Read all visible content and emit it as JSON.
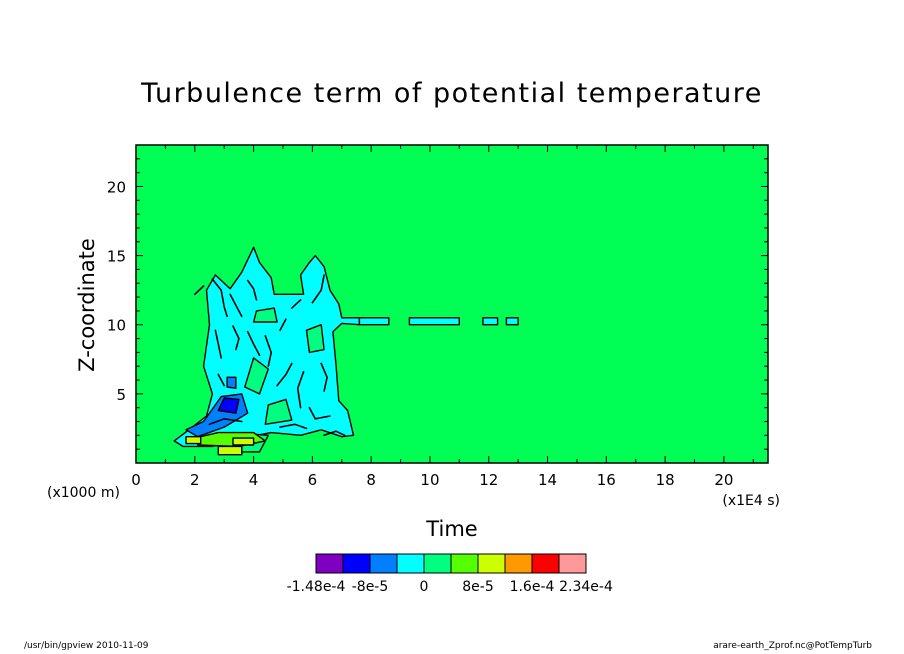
{
  "chart_data": {
    "type": "heatmap",
    "title": "Turbulence term of potential temperature",
    "xlabel": "Time",
    "ylabel": "Z-coordinate",
    "x_unit_note": "(x1E4 s)",
    "y_unit_note": "(x1000 m)",
    "xlim": [
      0,
      21.5
    ],
    "ylim": [
      0,
      23
    ],
    "x_ticks": [
      0,
      2,
      4,
      6,
      8,
      10,
      12,
      14,
      16,
      18,
      20
    ],
    "y_ticks": [
      5,
      10,
      15,
      20
    ],
    "background_level_color": "#00ff55",
    "colorbar": {
      "colors": [
        "#8000c0",
        "#0000ff",
        "#0080ff",
        "#00ffff",
        "#00ff80",
        "#55ff00",
        "#ccff00",
        "#ff9900",
        "#ff0000",
        "#ff9999"
      ],
      "tick_labels": [
        "-1.48e-4",
        "-8e-5",
        "0",
        "8e-5",
        "1.6e-4",
        "2.34e-4"
      ]
    },
    "regions": [
      {
        "level": "cyan",
        "color": "#00ffff",
        "polygon": [
          [
            1.3,
            1.6
          ],
          [
            1.8,
            2.4
          ],
          [
            2.4,
            3.4
          ],
          [
            2.6,
            5
          ],
          [
            2.3,
            7
          ],
          [
            2.5,
            10
          ],
          [
            2.4,
            12.5
          ],
          [
            2.7,
            13.6
          ],
          [
            3.2,
            12.6
          ],
          [
            3.6,
            13.8
          ],
          [
            4.0,
            15.6
          ],
          [
            4.2,
            14.5
          ],
          [
            4.6,
            13.4
          ],
          [
            4.7,
            12.2
          ],
          [
            5.7,
            12.2
          ],
          [
            5.6,
            13.6
          ],
          [
            5.9,
            14.5
          ],
          [
            6.1,
            15.0
          ],
          [
            6.4,
            14.2
          ],
          [
            6.6,
            12.5
          ],
          [
            6.9,
            11.5
          ],
          [
            7.0,
            10.5
          ],
          [
            7.6,
            10.5
          ],
          [
            7.6,
            10.0
          ],
          [
            7.0,
            10.1
          ],
          [
            6.7,
            9.5
          ],
          [
            6.8,
            7.2
          ],
          [
            6.9,
            4.5
          ],
          [
            7.2,
            3.8
          ],
          [
            7.4,
            2.0
          ],
          [
            7.0,
            1.9
          ],
          [
            6.3,
            2.4
          ],
          [
            5.6,
            2.0
          ],
          [
            4.6,
            2.2
          ],
          [
            3.6,
            1.8
          ],
          [
            2.6,
            1.2
          ],
          [
            1.6,
            1.2
          ]
        ]
      },
      {
        "level": "cyan",
        "color": "#00ffff",
        "polygon": [
          [
            7.6,
            10.0
          ],
          [
            8.6,
            10.0
          ],
          [
            8.6,
            10.5
          ],
          [
            7.6,
            10.5
          ]
        ]
      },
      {
        "level": "cyan",
        "color": "#00ffff",
        "polygon": [
          [
            9.3,
            10.0
          ],
          [
            11.0,
            10.0
          ],
          [
            11.0,
            10.5
          ],
          [
            9.3,
            10.5
          ]
        ]
      },
      {
        "level": "cyan",
        "color": "#00ffff",
        "polygon": [
          [
            11.8,
            10.0
          ],
          [
            12.3,
            10.0
          ],
          [
            12.3,
            10.5
          ],
          [
            11.8,
            10.5
          ]
        ]
      },
      {
        "level": "cyan",
        "color": "#00ffff",
        "polygon": [
          [
            12.6,
            10.0
          ],
          [
            13.0,
            10.0
          ],
          [
            13.0,
            10.5
          ],
          [
            12.6,
            10.5
          ]
        ]
      },
      {
        "level": "green",
        "color": "#00ff80",
        "polygon": [
          [
            4.0,
            10.2
          ],
          [
            4.8,
            10.2
          ],
          [
            4.7,
            11.2
          ],
          [
            4.1,
            11.0
          ]
        ]
      },
      {
        "level": "green",
        "color": "#00ff80",
        "polygon": [
          [
            3.7,
            5.5
          ],
          [
            4.2,
            5.0
          ],
          [
            4.5,
            6.8
          ],
          [
            4.0,
            7.6
          ]
        ]
      },
      {
        "level": "green",
        "color": "#00ff80",
        "polygon": [
          [
            5.9,
            8.0
          ],
          [
            6.4,
            8.2
          ],
          [
            6.3,
            10.0
          ],
          [
            5.8,
            9.6
          ]
        ]
      },
      {
        "level": "green",
        "color": "#00ff80",
        "polygon": [
          [
            4.4,
            2.8
          ],
          [
            5.3,
            3.1
          ],
          [
            5.1,
            4.6
          ],
          [
            4.5,
            4.2
          ]
        ]
      },
      {
        "level": "green",
        "color": "#00ff80",
        "polygon": [
          [
            2.8,
            0.8
          ],
          [
            4.2,
            0.8
          ],
          [
            4.5,
            2.0
          ],
          [
            3.3,
            2.2
          ]
        ]
      },
      {
        "level": "blue",
        "color": "#0080ff",
        "polygon": [
          [
            1.7,
            2.4
          ],
          [
            2.3,
            3.0
          ],
          [
            2.9,
            4.8
          ],
          [
            3.6,
            5.0
          ],
          [
            3.8,
            3.6
          ],
          [
            3.0,
            2.6
          ],
          [
            2.1,
            1.9
          ]
        ]
      },
      {
        "level": "blue",
        "color": "#0080ff",
        "polygon": [
          [
            3.1,
            5.5
          ],
          [
            3.4,
            5.4
          ],
          [
            3.4,
            6.2
          ],
          [
            3.1,
            6.2
          ]
        ]
      },
      {
        "level": "darkblue",
        "color": "#0000ff",
        "polygon": [
          [
            2.8,
            3.8
          ],
          [
            3.4,
            3.6
          ],
          [
            3.5,
            4.6
          ],
          [
            3.0,
            4.7
          ]
        ]
      },
      {
        "level": "yellowgreen",
        "color": "#55ff00",
        "polygon": [
          [
            2.1,
            1.3
          ],
          [
            3.5,
            1.2
          ],
          [
            4.4,
            1.6
          ],
          [
            4.0,
            2.2
          ],
          [
            2.8,
            2.2
          ],
          [
            2.2,
            1.9
          ]
        ]
      },
      {
        "level": "yellow",
        "color": "#ccff00",
        "polygon": [
          [
            1.7,
            1.4
          ],
          [
            2.2,
            1.4
          ],
          [
            2.2,
            1.9
          ],
          [
            1.7,
            1.9
          ]
        ]
      },
      {
        "level": "yellow",
        "color": "#ccff00",
        "polygon": [
          [
            2.8,
            0.6
          ],
          [
            3.6,
            0.6
          ],
          [
            3.6,
            1.2
          ],
          [
            2.8,
            1.2
          ]
        ]
      },
      {
        "level": "yellow",
        "color": "#ccff00",
        "polygon": [
          [
            3.3,
            1.3
          ],
          [
            4.0,
            1.3
          ],
          [
            4.0,
            1.8
          ],
          [
            3.3,
            1.8
          ]
        ]
      }
    ],
    "contour_lines": [
      [
        [
          2.6,
          13.3
        ],
        [
          2.9,
          12.5
        ],
        [
          3.0,
          11.3
        ],
        [
          3.1,
          10.6
        ]
      ],
      [
        [
          3.2,
          12.2
        ],
        [
          3.4,
          11.4
        ],
        [
          3.6,
          10.6
        ]
      ],
      [
        [
          3.8,
          13.2
        ],
        [
          4.0,
          12.6
        ],
        [
          4.1,
          11.8
        ]
      ],
      [
        [
          2.7,
          9.6
        ],
        [
          2.8,
          8.6
        ],
        [
          2.9,
          7.6
        ]
      ],
      [
        [
          3.3,
          9.9
        ],
        [
          3.5,
          9.0
        ],
        [
          3.4,
          8.2
        ]
      ],
      [
        [
          3.8,
          9.5
        ],
        [
          4.0,
          8.6
        ],
        [
          4.2,
          7.8
        ]
      ],
      [
        [
          4.4,
          9.2
        ],
        [
          4.6,
          8.0
        ],
        [
          4.5,
          7.0
        ]
      ],
      [
        [
          2.8,
          6.4
        ],
        [
          3.0,
          5.6
        ]
      ],
      [
        [
          4.8,
          5.6
        ],
        [
          5.1,
          6.4
        ],
        [
          5.3,
          7.2
        ]
      ],
      [
        [
          5.6,
          4.0
        ],
        [
          5.5,
          5.4
        ],
        [
          5.7,
          6.6
        ]
      ],
      [
        [
          6.0,
          11.6
        ],
        [
          6.3,
          12.5
        ],
        [
          6.4,
          13.6
        ]
      ],
      [
        [
          6.3,
          7.2
        ],
        [
          6.5,
          6.2
        ],
        [
          6.4,
          5.2
        ]
      ],
      [
        [
          5.9,
          4.0
        ],
        [
          6.1,
          3.2
        ],
        [
          6.6,
          3.4
        ]
      ],
      [
        [
          2.5,
          2.8
        ],
        [
          3.0,
          3.2
        ],
        [
          3.6,
          3.0
        ]
      ],
      [
        [
          4.9,
          2.6
        ],
        [
          5.4,
          2.8
        ],
        [
          5.8,
          2.5
        ]
      ],
      [
        [
          6.4,
          2.0
        ],
        [
          6.8,
          2.3
        ],
        [
          7.1,
          2.0
        ]
      ],
      [
        [
          2.0,
          12.2
        ],
        [
          2.3,
          12.8
        ]
      ],
      [
        [
          5.3,
          11.2
        ],
        [
          5.6,
          11.8
        ]
      ],
      [
        [
          4.9,
          9.6
        ],
        [
          5.1,
          10.4
        ]
      ]
    ]
  },
  "footer": {
    "left": "/usr/bin/gpview  2010-11-09",
    "right": "arare-earth_Zprof.nc@PotTempTurb"
  }
}
